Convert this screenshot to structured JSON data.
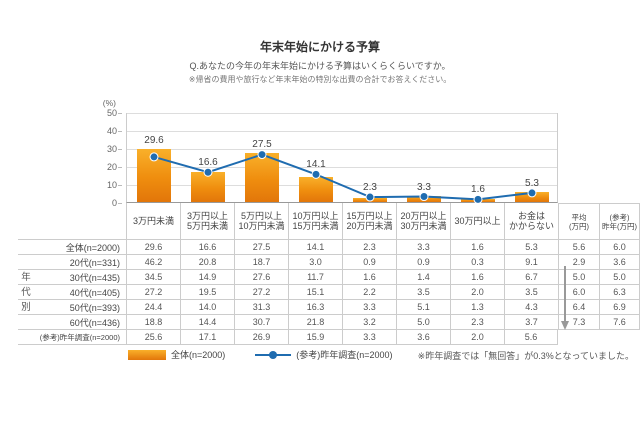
{
  "header": {
    "title": "年末年始にかける予算",
    "question": "Q.あなたの今年の年末年始にかける予算はいくらくらいですか。",
    "note": "※帰省の費用や旅行など年末年始の特別な出費の合計でお答えください。"
  },
  "chart_data": {
    "type": "bar+line",
    "title": "年末年始にかける予算",
    "unit_label": "(%)",
    "ylim": [
      0,
      50
    ],
    "yticks": [
      0,
      10,
      20,
      30,
      40,
      50
    ],
    "grid": true,
    "legend_position": "bottom",
    "categories": [
      "3万円未満",
      "3万円以上5万円未満",
      "5万円以上10万円未満",
      "10万円以上15万円未満",
      "15万円以上20万円未満",
      "20万円以上30万円未満",
      "30万円以上",
      "お金はかからない"
    ],
    "category_lines": [
      [
        "3万円未満"
      ],
      [
        "3万円以上",
        "5万円未満"
      ],
      [
        "5万円以上",
        "10万円未満"
      ],
      [
        "10万円以上",
        "15万円未満"
      ],
      [
        "15万円以上",
        "20万円未満"
      ],
      [
        "20万円以上",
        "30万円未満"
      ],
      [
        "30万円以上"
      ],
      [
        "お金は",
        "かからない"
      ]
    ],
    "series": [
      {
        "name": "全体(n=2000)",
        "type": "bar",
        "color": "#ef8d0e",
        "values": [
          29.6,
          16.6,
          27.5,
          14.1,
          2.3,
          3.3,
          1.6,
          5.3
        ]
      },
      {
        "name": "(参考)昨年調査(n=2000)",
        "type": "line",
        "color": "#1f6cb0",
        "values": [
          25.6,
          17.1,
          26.9,
          15.9,
          3.3,
          3.6,
          2.0,
          5.6
        ]
      }
    ]
  },
  "table": {
    "group_label": "年代別",
    "extra_headers": [
      [
        "平均",
        "(万円)"
      ],
      [
        "(参考)",
        "昨年(万円)"
      ]
    ],
    "rows": [
      {
        "label": "全体(n=2000)",
        "values": [
          "29.6",
          "16.6",
          "27.5",
          "14.1",
          "2.3",
          "3.3",
          "1.6",
          "5.3"
        ],
        "extras": [
          "5.6",
          "6.0"
        ]
      },
      {
        "label": "20代(n=331)",
        "values": [
          "46.2",
          "20.8",
          "18.7",
          "3.0",
          "0.9",
          "0.9",
          "0.3",
          "9.1"
        ],
        "extras": [
          "2.9",
          "3.6"
        ]
      },
      {
        "label": "30代(n=435)",
        "values": [
          "34.5",
          "14.9",
          "27.6",
          "11.7",
          "1.6",
          "1.4",
          "1.6",
          "6.7"
        ],
        "extras": [
          "5.0",
          "5.0"
        ]
      },
      {
        "label": "40代(n=405)",
        "values": [
          "27.2",
          "19.5",
          "27.2",
          "15.1",
          "2.2",
          "3.5",
          "2.0",
          "3.5"
        ],
        "extras": [
          "6.0",
          "6.3"
        ]
      },
      {
        "label": "50代(n=393)",
        "values": [
          "24.4",
          "14.0",
          "31.3",
          "16.3",
          "3.3",
          "5.1",
          "1.3",
          "4.3"
        ],
        "extras": [
          "6.4",
          "6.9"
        ]
      },
      {
        "label": "60代(n=436)",
        "values": [
          "18.8",
          "14.4",
          "30.7",
          "21.8",
          "3.2",
          "5.0",
          "2.3",
          "3.7"
        ],
        "extras": [
          "7.3",
          "7.6"
        ]
      },
      {
        "label": "(参考)昨年調査(n=2000)",
        "values": [
          "25.6",
          "17.1",
          "26.9",
          "15.9",
          "3.3",
          "3.6",
          "2.0",
          "5.6"
        ],
        "extras": []
      }
    ]
  },
  "legend": {
    "bar_label": "全体(n=2000)",
    "line_label": "(参考)昨年調査(n=2000)"
  },
  "footnote": "※昨年調査では「無回答」が0.3%となっていました。",
  "colors": {
    "bar_top": "#f9b02a",
    "bar_bottom": "#e2760a",
    "line": "#1f6cb0",
    "grid": "#dddddd",
    "border": "#cccccc",
    "axis": "#999999",
    "arrow": "#999999",
    "text": "#555555"
  }
}
